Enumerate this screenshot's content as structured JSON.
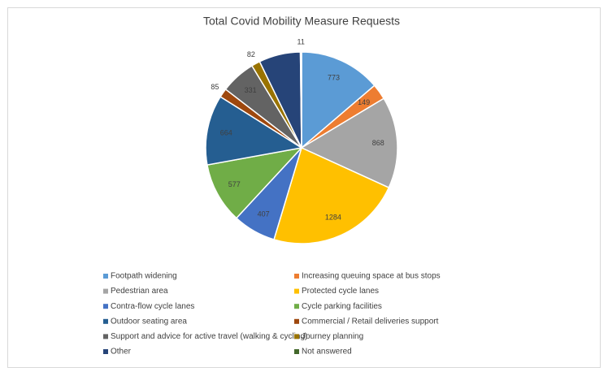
{
  "chart_data": {
    "type": "pie",
    "title": "Total Covid Mobility Measure Requests",
    "categories": [
      "Footpath widening",
      "Increasing queuing space at bus stops",
      "Pedestrian area",
      "Protected cycle lanes",
      "Contra-flow cycle lanes",
      "Cycle parking facilities",
      "Outdoor seating area",
      "Commercial / Retail deliveries support",
      "Support and advice for active travel (walking & cycling)",
      "Journey planning",
      "Other",
      "Not answered"
    ],
    "values": [
      773,
      149,
      868,
      1284,
      407,
      577,
      664,
      85,
      331,
      82,
      394,
      11
    ],
    "value_labels": [
      "773",
      "149",
      "868",
      "1284",
      "407",
      "577",
      "664",
      "85",
      "331",
      "82",
      null,
      "11"
    ],
    "colors": [
      "#5b9bd5",
      "#ed7d31",
      "#a5a5a5",
      "#ffc000",
      "#4472c4",
      "#70ad47",
      "#255e91",
      "#9e480e",
      "#636363",
      "#997300",
      "#264478",
      "#43682b"
    ],
    "legend": "bottom"
  }
}
